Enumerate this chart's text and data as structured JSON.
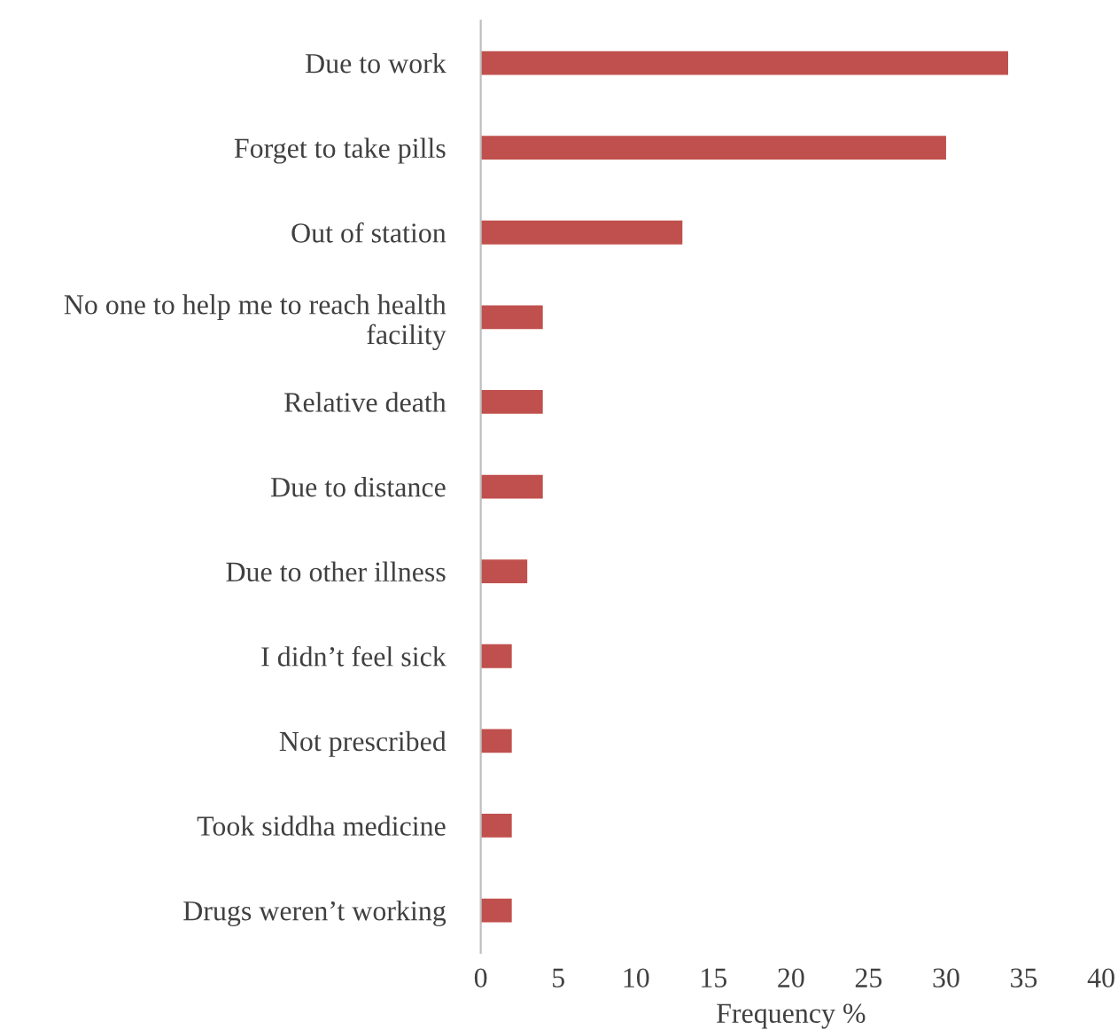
{
  "chart_data": {
    "type": "bar",
    "orientation": "horizontal",
    "xlabel": "Frequency %",
    "categories": [
      "Due to work",
      "Forget to take pills",
      "Out of station",
      "No one to help me to reach health facility",
      "Relative death",
      "Due to distance",
      "Due to other illness",
      "I didn’t feel sick",
      "Not prescribed",
      "Took siddha medicine",
      "Drugs weren’t working"
    ],
    "values": [
      34,
      30,
      13,
      4,
      4,
      4,
      3,
      2,
      2,
      2,
      2
    ],
    "color": "#c0504d",
    "xlim": [
      0,
      40
    ],
    "xticks": [
      0,
      5,
      10,
      15,
      20,
      25,
      30,
      35,
      40
    ],
    "grid": false,
    "legend": false
  }
}
